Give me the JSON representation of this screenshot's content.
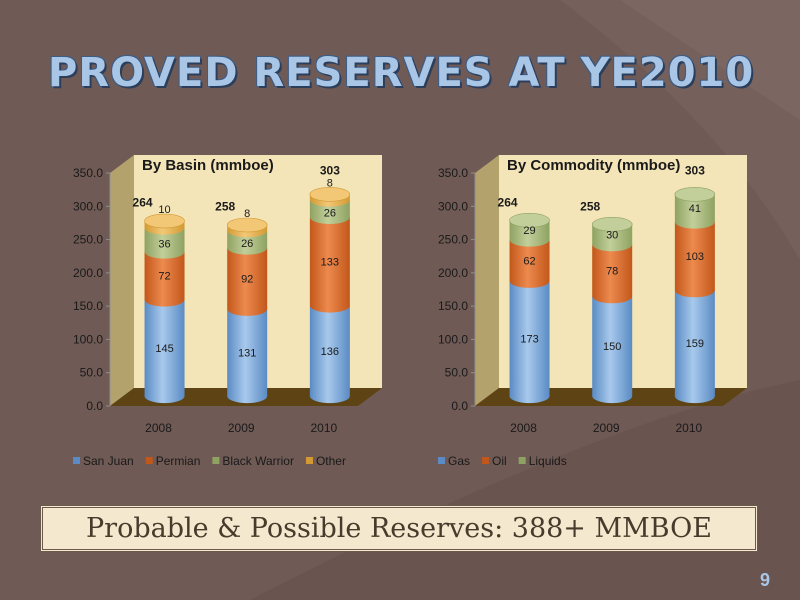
{
  "slide": {
    "title": "PROVED RESERVES AT YE2010",
    "callout": "Probable & Possible Reserves: 388+ MMBOE",
    "page_number": "9"
  },
  "colors": {
    "background": "#6f5a55",
    "plot_background": "#f4e5b8",
    "floor": "#5e4414"
  },
  "chart_data": [
    {
      "type": "bar",
      "stacked": true,
      "three_d": true,
      "title": "By Basin (mmboe)",
      "categories": [
        "2008",
        "2009",
        "2010"
      ],
      "totals": [
        264,
        258,
        303
      ],
      "series": [
        {
          "name": "San Juan",
          "values": [
            145,
            131,
            136
          ],
          "color": "#a8c9ec",
          "colorDark": "#5a8bc4"
        },
        {
          "name": "Permian",
          "values": [
            72,
            92,
            133
          ],
          "color": "#ed8a4e",
          "colorDark": "#c2571b"
        },
        {
          "name": "Black Warrior",
          "values": [
            36,
            26,
            26
          ],
          "color": "#c2cf9a",
          "colorDark": "#8ea262"
        },
        {
          "name": "Other",
          "values": [
            10,
            8,
            8
          ],
          "color": "#f2c877",
          "colorDark": "#d39a33"
        }
      ],
      "ylim": [
        0,
        350
      ],
      "yticks": [
        "0.0",
        "50.0",
        "100.0",
        "150.0",
        "200.0",
        "250.0",
        "300.0",
        "350.0"
      ],
      "legend": "bottom",
      "grid": false
    },
    {
      "type": "bar",
      "stacked": true,
      "three_d": true,
      "title": "By Commodity (mmboe)",
      "categories": [
        "2008",
        "2009",
        "2010"
      ],
      "totals": [
        264,
        258,
        303
      ],
      "series": [
        {
          "name": "Gas",
          "values": [
            173,
            150,
            159
          ],
          "color": "#a8c9ec",
          "colorDark": "#5a8bc4"
        },
        {
          "name": "Oil",
          "values": [
            62,
            78,
            103
          ],
          "color": "#ed8a4e",
          "colorDark": "#c2571b"
        },
        {
          "name": "Liquids",
          "values": [
            29,
            30,
            41
          ],
          "color": "#c2cf9a",
          "colorDark": "#8ea262"
        }
      ],
      "ylim": [
        0,
        350
      ],
      "yticks": [
        "0.0",
        "50.0",
        "100.0",
        "150.0",
        "200.0",
        "250.0",
        "300.0",
        "350.0"
      ],
      "legend": "bottom",
      "grid": false
    }
  ]
}
